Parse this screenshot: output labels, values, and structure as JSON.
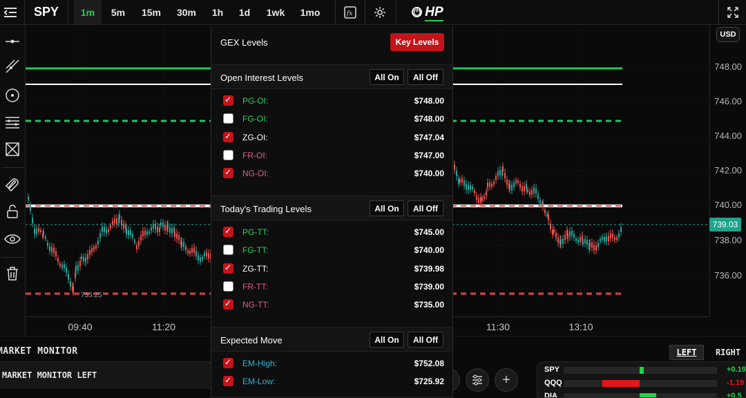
{
  "toolbar": {
    "ticker": "SPY",
    "timeframes": [
      "1m",
      "5m",
      "15m",
      "30m",
      "1h",
      "1d",
      "1wk",
      "1mo"
    ],
    "active_timeframe": "1m",
    "logo": "HP"
  },
  "chart": {
    "price_ticks": [
      "748.00",
      "746.00",
      "744.00",
      "742.00",
      "740.00",
      "738.00",
      "736.00"
    ],
    "time_ticks": [
      "09:40",
      "11:20",
      "11:30",
      "13:10"
    ],
    "currency": "USD",
    "current_price": "739.03",
    "low_label": "735.25",
    "colors": {
      "green": "#21c55d",
      "red": "#ef3b3b",
      "white": "#ffffff",
      "up": "#26a69a",
      "down": "#ef5350"
    }
  },
  "gex_panel": {
    "title": "GEX Levels",
    "key_levels_label": "Key Levels",
    "all_on_label": "All On",
    "all_off_label": "All Off",
    "sections": [
      {
        "title": "Open Interest Levels",
        "rows": [
          {
            "name": "PG-OI:",
            "value": "$748.00",
            "checked": true,
            "color": "#2fd061"
          },
          {
            "name": "FG-OI:",
            "value": "$748.00",
            "checked": false,
            "color": "#2fd061"
          },
          {
            "name": "ZG-OI:",
            "value": "$747.04",
            "checked": true,
            "color": "#ffffff"
          },
          {
            "name": "FR-OI:",
            "value": "$747.00",
            "checked": false,
            "color": "#e05d90"
          },
          {
            "name": "NG-OI:",
            "value": "$740.00",
            "checked": true,
            "color": "#e05d90"
          }
        ]
      },
      {
        "title": "Today's Trading Levels",
        "rows": [
          {
            "name": "PG-TT:",
            "value": "$745.00",
            "checked": true,
            "color": "#2fd061"
          },
          {
            "name": "FG-TT:",
            "value": "$740.00",
            "checked": false,
            "color": "#2fd061"
          },
          {
            "name": "ZG-TT:",
            "value": "$739.98",
            "checked": true,
            "color": "#ffffff"
          },
          {
            "name": "FR-TT:",
            "value": "$739.00",
            "checked": false,
            "color": "#e05d90"
          },
          {
            "name": "NG-TT:",
            "value": "$735.00",
            "checked": true,
            "color": "#e05d90"
          }
        ]
      },
      {
        "title": "Expected Move",
        "rows": [
          {
            "name": "EM-High:",
            "value": "$752.08",
            "checked": true,
            "color": "#2fb6d6"
          },
          {
            "name": "EM-Low:",
            "value": "$725.92",
            "checked": true,
            "color": "#2fb6d6"
          }
        ]
      }
    ]
  },
  "market_monitor": {
    "title": "MARKET MONITOR",
    "left_label": "MARKET MONITOR LEFT",
    "tab_left": "LEFT",
    "tab_right": "RIGHT",
    "rows": [
      {
        "symbol": "SPY",
        "pct": "+0.19",
        "color": "#21d24c"
      },
      {
        "symbol": "QQQ",
        "pct": "-1.19",
        "color": "#e21818"
      },
      {
        "symbol": "DIA",
        "pct": "+0.5",
        "color": "#21d24c"
      }
    ]
  }
}
